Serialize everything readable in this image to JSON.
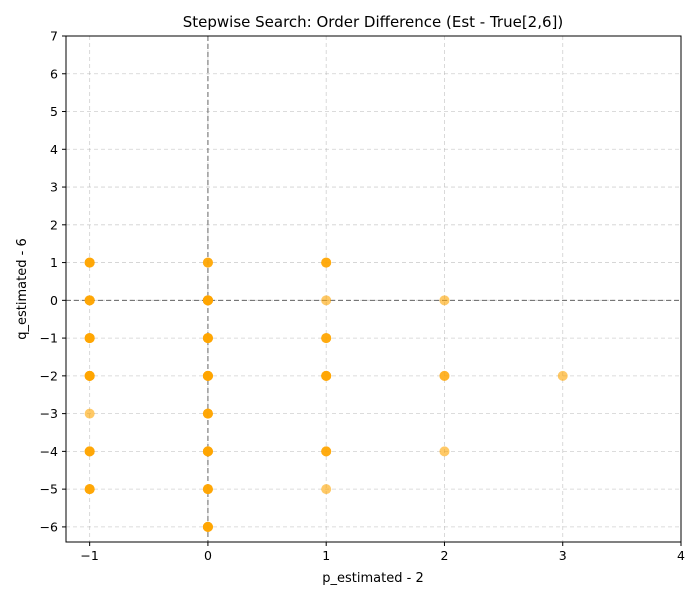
{
  "chart_data": {
    "type": "scatter",
    "title": "Stepwise Search: Order Difference (Est - True[2,6])",
    "xlabel": "p_estimated - 2",
    "ylabel": "q_estimated - 6",
    "xlim": [
      -1.2,
      4
    ],
    "ylim": [
      -6.4,
      7
    ],
    "xticks": [
      -1,
      0,
      1,
      2,
      3,
      4
    ],
    "yticks": [
      -6,
      -5,
      -4,
      -3,
      -2,
      -1,
      0,
      1,
      2,
      3,
      4,
      5,
      6,
      7
    ],
    "grid": true,
    "reference_lines": {
      "x": 0,
      "y": 0
    },
    "marker_color": "#FFA500",
    "points": [
      {
        "x": -1,
        "y": 1,
        "count": 4
      },
      {
        "x": -1,
        "y": 0,
        "count": 4
      },
      {
        "x": -1,
        "y": -1,
        "count": 5
      },
      {
        "x": -1,
        "y": -2,
        "count": 6
      },
      {
        "x": -1,
        "y": -3,
        "count": 1
      },
      {
        "x": -1,
        "y": -4,
        "count": 4
      },
      {
        "x": -1,
        "y": -5,
        "count": 4
      },
      {
        "x": 0,
        "y": 1,
        "count": 3
      },
      {
        "x": 0,
        "y": 0,
        "count": 6
      },
      {
        "x": 0,
        "y": -1,
        "count": 5
      },
      {
        "x": 0,
        "y": -2,
        "count": 6
      },
      {
        "x": 0,
        "y": -3,
        "count": 4
      },
      {
        "x": 0,
        "y": -4,
        "count": 5
      },
      {
        "x": 0,
        "y": -5,
        "count": 4
      },
      {
        "x": 0,
        "y": -6,
        "count": 5
      },
      {
        "x": 1,
        "y": 1,
        "count": 3
      },
      {
        "x": 1,
        "y": 0,
        "count": 1
      },
      {
        "x": 1,
        "y": -1,
        "count": 3
      },
      {
        "x": 1,
        "y": -2,
        "count": 4
      },
      {
        "x": 1,
        "y": -4,
        "count": 3
      },
      {
        "x": 1,
        "y": -5,
        "count": 1
      },
      {
        "x": 2,
        "y": 0,
        "count": 1
      },
      {
        "x": 2,
        "y": -2,
        "count": 2
      },
      {
        "x": 2,
        "y": -4,
        "count": 1
      },
      {
        "x": 3,
        "y": -2,
        "count": 1
      }
    ]
  }
}
